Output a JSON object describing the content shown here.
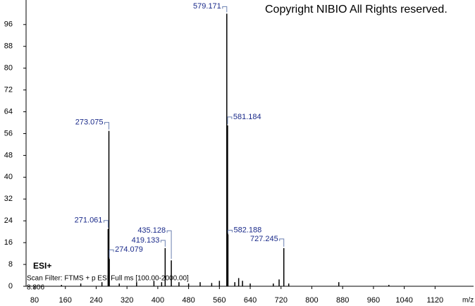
{
  "chart_data": {
    "type": "stem",
    "copyright": "Copyright NIBIO All Rights reserved.",
    "ionization": "ESI+",
    "scan_filter": "Scan Filter: FTMS + p ESI Full ms [100.00-2000.00]",
    "retention_time": "8.806",
    "x_label": "m/z",
    "xlim": [
      58,
      1220
    ],
    "ylim": [
      0,
      105
    ],
    "xticks": [
      80,
      160,
      240,
      320,
      400,
      480,
      560,
      640,
      720,
      800,
      880,
      960,
      1040,
      1120
    ],
    "yticks": [
      0,
      8,
      16,
      24,
      32,
      40,
      48,
      56,
      64,
      72,
      80,
      88,
      96
    ],
    "label_color": "#1a2a8a",
    "series": [
      {
        "color": "#000000",
        "show_labels": true,
        "x": [
          579.171,
          581.184,
          273.075,
          271.061,
          274.079,
          419.133,
          435.128,
          582.188,
          727.245
        ],
        "values": [
          100,
          59,
          57,
          21,
          10,
          14,
          9.5,
          19,
          14
        ]
      },
      {
        "color": "#000000",
        "show_labels": false,
        "x": [
          150,
          200,
          255,
          300,
          345,
          390,
          410,
          455,
          480,
          510,
          540,
          560,
          600,
          610,
          620,
          640,
          700,
          715,
          740,
          870,
          1000
        ],
        "values": [
          0.5,
          1,
          1.5,
          1,
          1.5,
          2,
          1.5,
          1.5,
          1,
          1.5,
          1.2,
          2,
          1.5,
          3,
          2,
          1,
          1,
          2.5,
          1,
          1.5,
          0.5
        ]
      }
    ]
  }
}
